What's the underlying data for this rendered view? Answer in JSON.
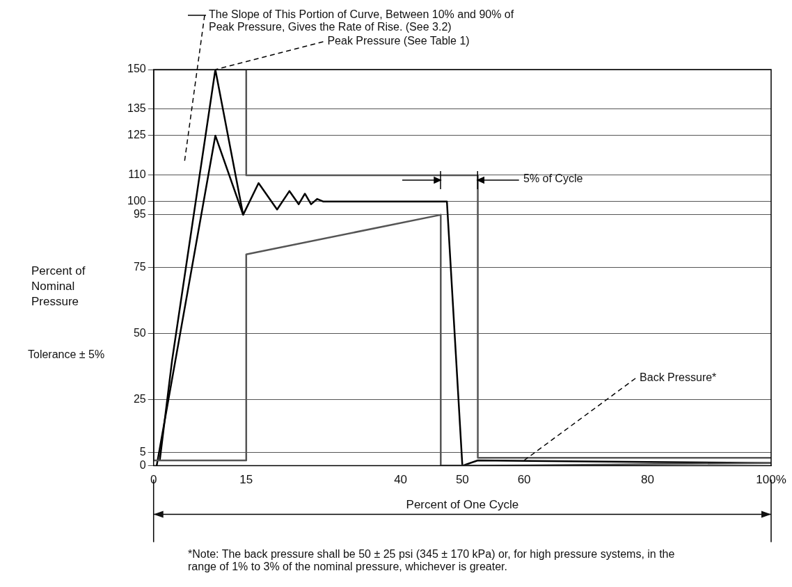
{
  "chart_data": {
    "type": "line",
    "xlabel": "Percent of One Cycle",
    "ylabel": "Percent of Nominal Pressure",
    "xlim": [
      0,
      100
    ],
    "xticks": [
      0,
      15,
      40,
      50,
      60,
      80,
      {
        "value": 100,
        "label": "100%"
      }
    ],
    "ylim": [
      0,
      150
    ],
    "yticks": [
      0,
      5,
      25,
      50,
      75,
      95,
      100,
      110,
      125,
      135,
      150
    ],
    "grid": "y",
    "legend": false,
    "marker": "none",
    "line_style": "solid",
    "series": [
      {
        "color": "#555555",
        "x": [
          0,
          0,
          15,
          15,
          52.5,
          52.5,
          100
        ],
        "values": [
          2,
          150,
          150,
          110,
          110,
          3,
          3
        ]
      },
      {
        "color": "#555555",
        "x": [
          0,
          15,
          15,
          46.5,
          46.5,
          52.5,
          100
        ],
        "values": [
          2,
          2,
          80,
          95,
          0,
          0,
          1
        ]
      },
      {
        "color": "#000000",
        "x": [
          1,
          3,
          10,
          14.5,
          17,
          20,
          22,
          23.5,
          24.5,
          25.5,
          26.5,
          27.5,
          47.5,
          50,
          52.5,
          100
        ],
        "values": [
          2,
          40,
          150,
          95,
          107,
          97,
          104,
          99,
          103,
          99,
          101,
          100,
          100,
          0,
          2,
          1
        ]
      },
      {
        "color": "#000000",
        "x": [
          0.5,
          10,
          14.5
        ],
        "values": [
          0,
          125,
          95
        ]
      }
    ],
    "annotations": [
      "The Slope of This Portion of Curve, Between 10% and 90% of Peak Pressure, Gives the Rate of Rise. (See 3.2)",
      {
        "text": "Peak Pressure (See Table 1)",
        "x": 10,
        "y": 150
      },
      "5% of Cycle",
      {
        "text": "Back Pressure*",
        "x": 60,
        "y": 2
      },
      "Tolerance ± 5%",
      "*Note: The back pressure shall be 50 ± 25 psi (345 ± 170 kPa) or, for high pressure systems, in the range of 1% to 3% of the nominal pressure, whichever is greater."
    ]
  }
}
